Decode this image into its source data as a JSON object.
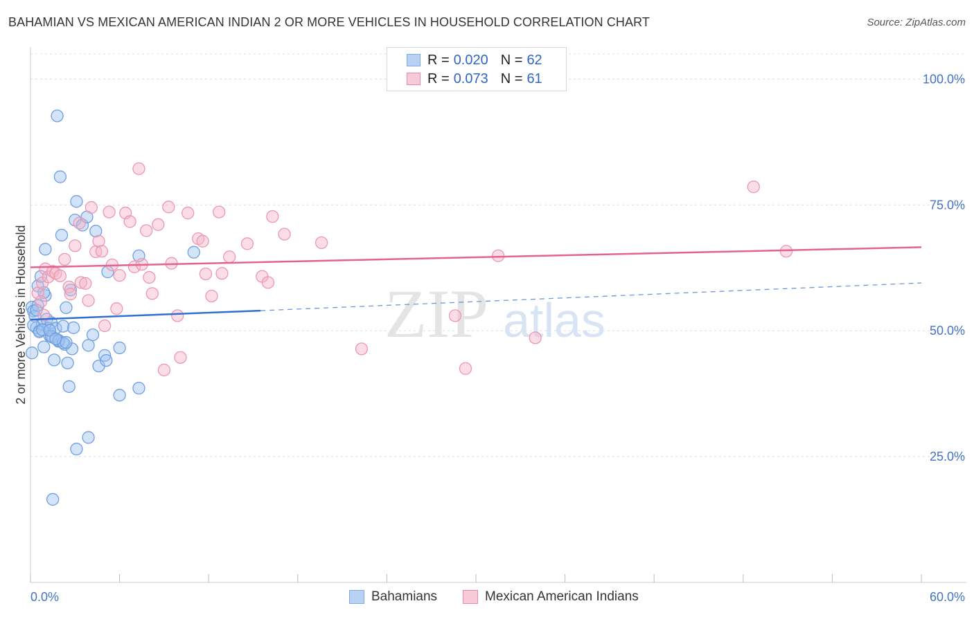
{
  "title": "BAHAMIAN VS MEXICAN AMERICAN INDIAN 2 OR MORE VEHICLES IN HOUSEHOLD CORRELATION CHART",
  "source": "Source: ZipAtlas.com",
  "watermark": {
    "zip": "ZIP",
    "atlas": "atlas"
  },
  "legend": {
    "rows": [
      {
        "r_label": "R =",
        "r_value": "0.020",
        "n_label": "N =",
        "n_value": "62",
        "color": "#7aa7e8",
        "fill": "#b9d1f3"
      },
      {
        "r_label": "R =",
        "r_value": "0.073",
        "n_label": "N =",
        "n_value": "61",
        "color": "#e88aa6",
        "fill": "#f8c9d7"
      }
    ]
  },
  "bottom_legend": [
    {
      "label": "Bahamians",
      "color": "#7aa7e8",
      "fill": "#b9d1f3"
    },
    {
      "label": "Mexican American Indians",
      "color": "#e88aa6",
      "fill": "#f8c9d7"
    }
  ],
  "chart_data": {
    "type": "scatter",
    "title": "BAHAMIAN VS MEXICAN AMERICAN INDIAN 2 OR MORE VEHICLES IN HOUSEHOLD CORRELATION CHART",
    "xlabel": "",
    "ylabel": "2 or more Vehicles in Household",
    "xlim": [
      0,
      60
    ],
    "ylim": [
      0,
      105
    ],
    "x_tick_labels": [
      "0.0%",
      "60.0%"
    ],
    "y_ticks": [
      25,
      50,
      75,
      100
    ],
    "y_tick_labels": [
      "25.0%",
      "50.0%",
      "75.0%",
      "100.0%"
    ],
    "grid": true,
    "series": [
      {
        "name": "Bahamians",
        "color": "#4a86d8",
        "fill": "rgba(160,195,240,0.45)",
        "stroke": "#6e9ee0",
        "trend": {
          "x": [
            0,
            15.5
          ],
          "y": [
            52.2,
            54.0
          ],
          "dashed_to": [
            60,
            59.5
          ],
          "color": "#2f6fd0"
        },
        "points": [
          [
            0.1,
            54.7
          ],
          [
            0.1,
            45.6
          ],
          [
            0.2,
            53.9
          ],
          [
            0.3,
            52.9
          ],
          [
            0.4,
            50.6
          ],
          [
            0.5,
            58.9
          ],
          [
            0.5,
            55.0
          ],
          [
            0.6,
            50.0
          ],
          [
            0.7,
            60.8
          ],
          [
            0.8,
            51.3
          ],
          [
            0.9,
            46.8
          ],
          [
            1.0,
            66.2
          ],
          [
            1.0,
            57.0
          ],
          [
            1.1,
            52.3
          ],
          [
            1.2,
            50.5
          ],
          [
            1.3,
            49.0
          ],
          [
            1.4,
            51.6
          ],
          [
            1.5,
            16.5
          ],
          [
            1.5,
            48.7
          ],
          [
            1.6,
            44.2
          ],
          [
            1.7,
            50.5
          ],
          [
            1.8,
            92.7
          ],
          [
            1.9,
            47.9
          ],
          [
            2.0,
            80.6
          ],
          [
            2.1,
            69.0
          ],
          [
            2.2,
            50.9
          ],
          [
            2.3,
            47.3
          ],
          [
            2.4,
            54.6
          ],
          [
            2.5,
            43.6
          ],
          [
            2.6,
            38.9
          ],
          [
            2.7,
            58.1
          ],
          [
            2.8,
            46.4
          ],
          [
            2.9,
            50.6
          ],
          [
            3.0,
            72.0
          ],
          [
            3.1,
            75.7
          ],
          [
            3.1,
            26.5
          ],
          [
            3.5,
            71.0
          ],
          [
            3.8,
            72.6
          ],
          [
            3.9,
            28.8
          ],
          [
            3.9,
            47.1
          ],
          [
            4.2,
            49.2
          ],
          [
            4.4,
            69.8
          ],
          [
            4.6,
            43.0
          ],
          [
            5.0,
            45.1
          ],
          [
            5.1,
            44.1
          ],
          [
            5.2,
            61.7
          ],
          [
            6.0,
            46.6
          ],
          [
            6.0,
            37.2
          ],
          [
            7.3,
            38.6
          ],
          [
            7.3,
            64.9
          ],
          [
            11.0,
            65.6
          ],
          [
            0.2,
            51.1
          ],
          [
            0.6,
            49.8
          ],
          [
            0.9,
            57.6
          ],
          [
            1.4,
            48.9
          ],
          [
            1.9,
            48.1
          ],
          [
            2.2,
            47.6
          ],
          [
            0.4,
            54.1
          ],
          [
            0.8,
            50.2
          ],
          [
            1.3,
            50.1
          ],
          [
            1.7,
            48.4
          ],
          [
            2.4,
            47.7
          ]
        ]
      },
      {
        "name": "Mexican American Indians",
        "color": "#e06b94",
        "fill": "rgba(245,180,200,0.45)",
        "stroke": "#ec97b2",
        "trend": {
          "x": [
            0,
            60
          ],
          "y": [
            62.6,
            66.6
          ],
          "color": "#e4628d"
        },
        "points": [
          [
            0.5,
            57.5
          ],
          [
            0.7,
            55.8
          ],
          [
            0.8,
            59.5
          ],
          [
            0.9,
            53.1
          ],
          [
            1.0,
            62.3
          ],
          [
            1.2,
            60.7
          ],
          [
            1.5,
            61.8
          ],
          [
            1.7,
            61.4
          ],
          [
            2.0,
            60.9
          ],
          [
            2.3,
            64.2
          ],
          [
            2.6,
            58.7
          ],
          [
            2.7,
            57.3
          ],
          [
            3.0,
            66.9
          ],
          [
            3.3,
            71.4
          ],
          [
            3.4,
            59.6
          ],
          [
            3.7,
            59.4
          ],
          [
            3.9,
            56.0
          ],
          [
            4.1,
            74.5
          ],
          [
            4.4,
            65.7
          ],
          [
            4.6,
            67.8
          ],
          [
            4.8,
            65.8
          ],
          [
            5.0,
            51.0
          ],
          [
            5.3,
            73.6
          ],
          [
            5.5,
            63.1
          ],
          [
            5.8,
            54.4
          ],
          [
            6.0,
            61.0
          ],
          [
            6.4,
            73.4
          ],
          [
            6.7,
            71.7
          ],
          [
            7.0,
            62.7
          ],
          [
            7.3,
            82.2
          ],
          [
            7.5,
            63.2
          ],
          [
            7.8,
            69.9
          ],
          [
            8.0,
            60.6
          ],
          [
            8.2,
            57.4
          ],
          [
            8.6,
            71.1
          ],
          [
            9.0,
            42.2
          ],
          [
            9.3,
            74.6
          ],
          [
            9.5,
            63.4
          ],
          [
            9.9,
            53.0
          ],
          [
            10.1,
            44.7
          ],
          [
            10.6,
            73.4
          ],
          [
            11.3,
            68.3
          ],
          [
            11.6,
            67.8
          ],
          [
            11.8,
            61.3
          ],
          [
            12.2,
            56.9
          ],
          [
            12.7,
            73.6
          ],
          [
            12.9,
            61.4
          ],
          [
            13.4,
            64.7
          ],
          [
            14.6,
            67.3
          ],
          [
            15.6,
            60.8
          ],
          [
            16.0,
            59.6
          ],
          [
            16.3,
            72.7
          ],
          [
            17.1,
            69.2
          ],
          [
            19.6,
            67.5
          ],
          [
            22.3,
            46.4
          ],
          [
            28.6,
            53.0
          ],
          [
            29.3,
            42.5
          ],
          [
            31.5,
            64.9
          ],
          [
            34.0,
            48.6
          ],
          [
            48.7,
            78.6
          ],
          [
            50.9,
            65.8
          ]
        ]
      }
    ]
  }
}
